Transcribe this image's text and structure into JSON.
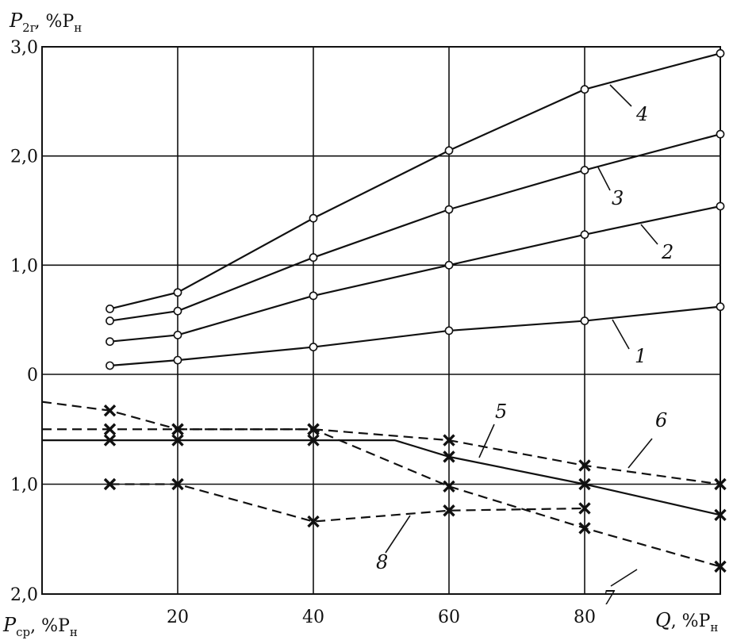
{
  "chart_data": {
    "type": "line",
    "y_top_label": {
      "main": "P",
      "sub": "2г",
      "rest": ", %P",
      "sub2": "н"
    },
    "y_bottom_label": {
      "main": "P",
      "sub": "ср",
      "rest": ", %P",
      "sub2": "н"
    },
    "x_label": {
      "main": "Q",
      "rest": ", %P",
      "sub2": "н"
    },
    "x_ticks": [
      "20",
      "40",
      "60",
      "80"
    ],
    "x_tick_values": [
      20,
      40,
      60,
      80
    ],
    "x_range": [
      0,
      100
    ],
    "upper_ticks": [
      "3,0",
      "2,0",
      "1,0",
      "0"
    ],
    "upper_tick_values": [
      3,
      2,
      1,
      0
    ],
    "lower_ticks": [
      "1,0",
      "2,0"
    ],
    "lower_tick_values": [
      1,
      2
    ],
    "upper_ylim": [
      0,
      3
    ],
    "lower_ylim": [
      0,
      2
    ],
    "upper_series": [
      {
        "name": "1",
        "x": [
          10,
          20,
          40,
          60,
          80,
          100
        ],
        "y": [
          0.08,
          0.13,
          0.25,
          0.4,
          0.49,
          0.62
        ]
      },
      {
        "name": "2",
        "x": [
          10,
          20,
          40,
          60,
          80,
          100
        ],
        "y": [
          0.3,
          0.36,
          0.72,
          1.0,
          1.28,
          1.54
        ]
      },
      {
        "name": "3",
        "x": [
          10,
          20,
          40,
          60,
          80,
          100
        ],
        "y": [
          0.49,
          0.58,
          1.07,
          1.51,
          1.87,
          2.2
        ]
      },
      {
        "name": "4",
        "x": [
          10,
          20,
          40,
          60,
          80,
          100
        ],
        "y": [
          0.6,
          0.75,
          1.43,
          2.05,
          2.61,
          2.94
        ]
      }
    ],
    "lower_series": [
      {
        "name": "5",
        "style": "solid",
        "x": [
          0,
          10,
          20,
          40,
          52,
          60,
          80,
          100
        ],
        "y": [
          0.6,
          0.6,
          0.6,
          0.6,
          0.6,
          0.75,
          1.0,
          1.28
        ],
        "markers": [
          10,
          20,
          40,
          60,
          80,
          100
        ]
      },
      {
        "name": "6",
        "style": "dashed",
        "x": [
          0,
          10,
          20,
          40,
          60,
          80,
          100
        ],
        "y": [
          0.5,
          0.5,
          0.5,
          0.5,
          0.6,
          0.83,
          1.0
        ],
        "markers": [
          10,
          20,
          40,
          60,
          80,
          100
        ]
      },
      {
        "name": "7",
        "style": "dashed",
        "x": [
          0,
          10,
          20,
          40,
          60,
          80,
          100
        ],
        "y": [
          0.25,
          0.33,
          0.5,
          0.5,
          1.02,
          1.4,
          1.75
        ],
        "markers": [
          10,
          20,
          40,
          60,
          80,
          100
        ]
      },
      {
        "name": "8",
        "style": "dashed",
        "x": [
          10,
          20,
          40,
          60,
          80
        ],
        "y": [
          1.0,
          1.0,
          1.34,
          1.24,
          1.22
        ],
        "markers": [
          10,
          20,
          40,
          60,
          80
        ]
      }
    ],
    "grid": true
  }
}
